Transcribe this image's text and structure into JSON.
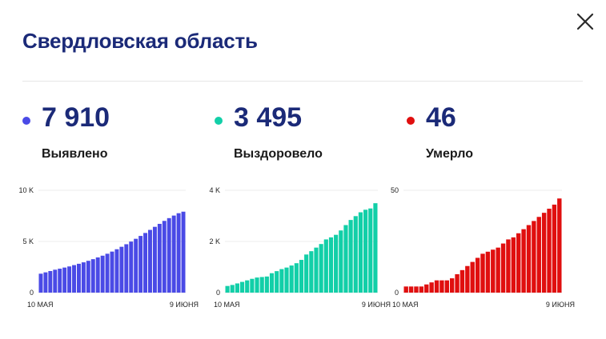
{
  "modal": {
    "title": "Свердловская область",
    "close_icon": "close-icon"
  },
  "stats": [
    {
      "value": "7 910",
      "label": "Выявлено",
      "color": "#4a4ae6"
    },
    {
      "value": "3 495",
      "label": "Выздоровело",
      "color": "#12cfa8"
    },
    {
      "value": "46",
      "label": "Умерло",
      "color": "#e00f0f"
    }
  ],
  "chart_data": [
    {
      "type": "bar",
      "color": "#4a4ae6",
      "ylim": [
        0,
        10000
      ],
      "y_ticks": [
        0,
        5000,
        10000
      ],
      "y_tick_labels": [
        "0",
        "5 K",
        "10 K"
      ],
      "x_tick_labels": [
        "10 МАЯ",
        "9 ИЮНЯ"
      ],
      "values": [
        1850,
        1980,
        2110,
        2240,
        2340,
        2450,
        2560,
        2690,
        2820,
        2960,
        3110,
        3270,
        3440,
        3610,
        3800,
        4010,
        4240,
        4480,
        4730,
        4990,
        5260,
        5540,
        5830,
        6130,
        6430,
        6720,
        7010,
        7280,
        7530,
        7760,
        7910
      ]
    },
    {
      "type": "bar",
      "color": "#12cfa8",
      "ylim": [
        0,
        4000
      ],
      "y_ticks": [
        0,
        2000,
        4000
      ],
      "y_tick_labels": [
        "0",
        "2 K",
        "4 K"
      ],
      "x_tick_labels": [
        "10 МАЯ",
        "9 ИЮНЯ"
      ],
      "values": [
        260,
        300,
        360,
        420,
        480,
        540,
        590,
        610,
        630,
        760,
        840,
        920,
        980,
        1060,
        1150,
        1280,
        1490,
        1620,
        1760,
        1900,
        2080,
        2160,
        2260,
        2430,
        2640,
        2840,
        2990,
        3140,
        3240,
        3290,
        3495
      ]
    },
    {
      "type": "bar",
      "color": "#e00f0f",
      "ylim": [
        0,
        50
      ],
      "y_ticks": [
        0,
        50
      ],
      "y_tick_labels": [
        "0",
        "50"
      ],
      "x_tick_labels": [
        "10 МАЯ",
        "9 ИЮНЯ"
      ],
      "values": [
        3,
        3,
        3,
        3,
        4,
        5,
        6,
        6,
        6,
        7,
        9,
        11,
        13,
        15,
        17,
        19,
        20,
        21,
        22,
        24,
        26,
        27,
        29,
        31,
        33,
        35,
        37,
        39,
        41,
        43,
        46
      ]
    }
  ]
}
